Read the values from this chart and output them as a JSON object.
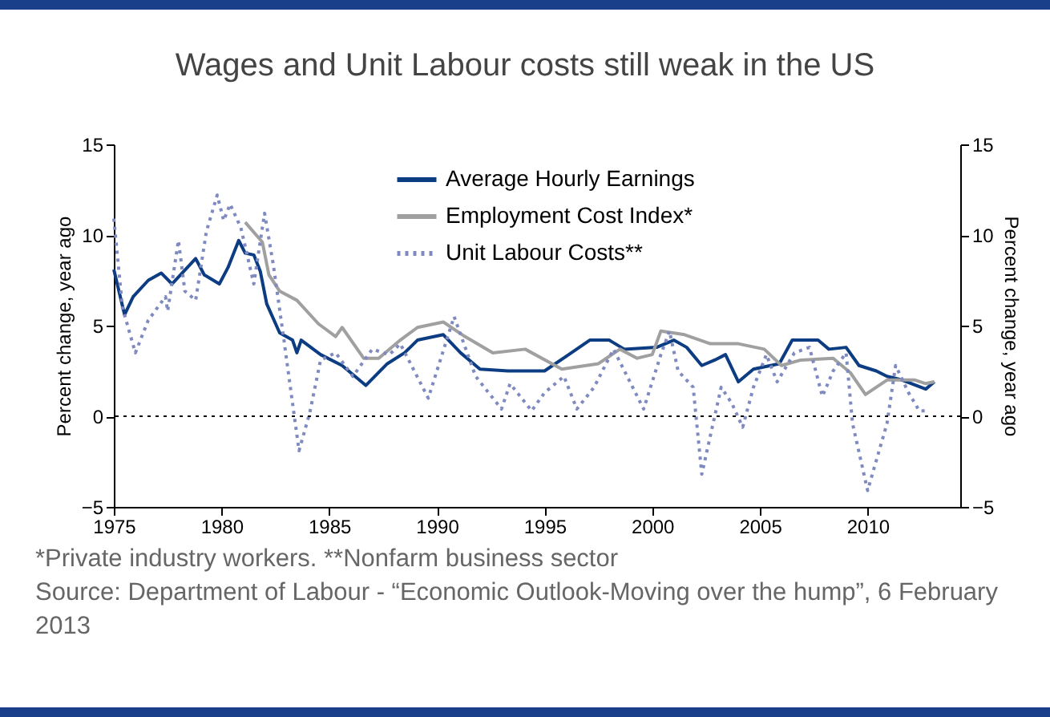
{
  "chart_data": {
    "type": "line",
    "title": "Wages and Unit Labour costs still weak in the US",
    "ylabel": "Percent change, year ago",
    "y2label": "Percent change, year ago",
    "xlim": [
      1975,
      2014.3
    ],
    "xticks": [
      1975,
      1980,
      1985,
      1990,
      1995,
      2000,
      2005,
      2010
    ],
    "ylim": [
      -5,
      15
    ],
    "yticks": [
      -5,
      0,
      5,
      10,
      15
    ],
    "y2lim": [
      -5,
      15
    ],
    "y2ticks": [
      -5,
      0,
      5,
      10,
      15
    ],
    "legend": "top",
    "line_style": "solid",
    "ref_lines": [
      {
        "axis": "y",
        "value": 0,
        "color": "#000000",
        "line_style": "dotted"
      }
    ],
    "series": [
      {
        "name": "Average Hourly Earnings",
        "color": "#0c3c82",
        "x": [
          1975.0,
          1975.5,
          1975.9,
          1976.6,
          1977.2,
          1977.7,
          1978.8,
          1979.2,
          1979.9,
          1980.3,
          1980.8,
          1981.1,
          1981.5,
          1981.8,
          1982.1,
          1982.7,
          1983.3,
          1983.5,
          1983.7,
          1984.6,
          1985.6,
          1986.7,
          1987.7,
          1988.5,
          1989.1,
          1990.3,
          1991.1,
          1992.0,
          1993.3,
          1995.0,
          1996.0,
          1997.1,
          1998.0,
          1998.7,
          2000.2,
          2001.0,
          2001.6,
          2002.3,
          2002.9,
          2003.4,
          2004.0,
          2004.7,
          2005.5,
          2005.9,
          2006.5,
          2007.7,
          2008.2,
          2009.0,
          2009.6,
          2010.4,
          2010.9,
          2011.6,
          2012.7,
          2013.1
        ],
        "values": [
          8.1,
          5.6,
          6.6,
          7.5,
          7.9,
          7.3,
          8.7,
          7.8,
          7.3,
          8.2,
          9.7,
          9.0,
          8.9,
          8.0,
          6.2,
          4.6,
          4.2,
          3.5,
          4.2,
          3.4,
          2.8,
          1.7,
          2.9,
          3.5,
          4.2,
          4.5,
          3.5,
          2.6,
          2.5,
          2.5,
          3.3,
          4.2,
          4.2,
          3.7,
          3.8,
          4.2,
          3.8,
          2.8,
          3.1,
          3.4,
          1.9,
          2.6,
          2.8,
          2.9,
          4.2,
          4.2,
          3.7,
          3.8,
          2.8,
          2.5,
          2.2,
          2.0,
          1.5,
          1.9
        ]
      },
      {
        "name": "Employment Cost Index*",
        "color": "#a0a0a0",
        "x": [
          1981.1,
          1981.9,
          1982.2,
          1982.7,
          1983.5,
          1984.5,
          1985.3,
          1985.6,
          1986.6,
          1987.3,
          1988.3,
          1989.1,
          1990.3,
          1991.3,
          1992.6,
          1994.1,
          1995.8,
          1997.5,
          1998.5,
          1999.3,
          2000.0,
          2000.4,
          2001.5,
          2002.7,
          2004.0,
          2005.2,
          2006.0,
          2006.9,
          2008.4,
          2009.2,
          2009.9,
          2010.9,
          2012.2,
          2012.7,
          2013.1
        ],
        "values": [
          10.7,
          9.6,
          7.8,
          6.9,
          6.4,
          5.1,
          4.4,
          4.9,
          3.2,
          3.2,
          4.2,
          4.9,
          5.2,
          4.4,
          3.5,
          3.7,
          2.6,
          2.9,
          3.7,
          3.2,
          3.4,
          4.7,
          4.5,
          4.0,
          4.0,
          3.7,
          2.8,
          3.1,
          3.2,
          2.4,
          1.2,
          2.0,
          2.0,
          1.8,
          1.9
        ]
      },
      {
        "name": "Unit Labour Costs**",
        "color": "#7f8ac0",
        "line_style": "dotted",
        "x": [
          1975.0,
          1975.4,
          1976.0,
          1976.6,
          1977.4,
          1977.5,
          1978.0,
          1978.3,
          1978.8,
          1979.3,
          1979.8,
          1980.1,
          1980.4,
          1980.9,
          1981.5,
          1982.0,
          1982.4,
          1982.9,
          1983.3,
          1983.6,
          1984.1,
          1984.6,
          1985.3,
          1986.1,
          1987.0,
          1987.8,
          1988.3,
          1989.6,
          1990.8,
          1991.8,
          1993.0,
          1993.4,
          1994.4,
          1995.0,
          1995.9,
          1996.5,
          1997.3,
          1998.2,
          1999.6,
          2000.4,
          2000.8,
          2001.2,
          2001.9,
          2002.3,
          2003.2,
          2003.7,
          2004.2,
          2004.7,
          2005.3,
          2005.8,
          2006.6,
          2007.3,
          2007.9,
          2008.4,
          2009.0,
          2009.3,
          2010.0,
          2010.9,
          2011.3,
          2011.9,
          2012.4,
          2012.8
        ],
        "values": [
          10.9,
          6.0,
          3.5,
          5.3,
          6.6,
          5.8,
          9.7,
          6.9,
          6.4,
          10.2,
          12.2,
          10.8,
          11.7,
          10.4,
          7.3,
          11.2,
          8.4,
          4.2,
          0.7,
          -1.9,
          0.2,
          3.1,
          3.5,
          2.2,
          3.7,
          3.4,
          4.0,
          1.0,
          5.5,
          2.2,
          0.4,
          1.8,
          0.3,
          1.3,
          2.2,
          0.4,
          1.6,
          3.7,
          0.4,
          3.4,
          4.7,
          2.5,
          1.6,
          -3.2,
          1.6,
          0.7,
          -0.6,
          1.6,
          3.4,
          1.9,
          3.5,
          3.8,
          1.1,
          2.5,
          3.5,
          -0.4,
          -4.1,
          -0.4,
          2.8,
          1.3,
          0.3,
          0.3
        ]
      }
    ],
    "annotations": [
      "*Private industry workers. **Nonfarm business sector",
      "Source: Department of Labour - “Economic Outlook-Moving over the hump”, 6 February 2013"
    ]
  }
}
